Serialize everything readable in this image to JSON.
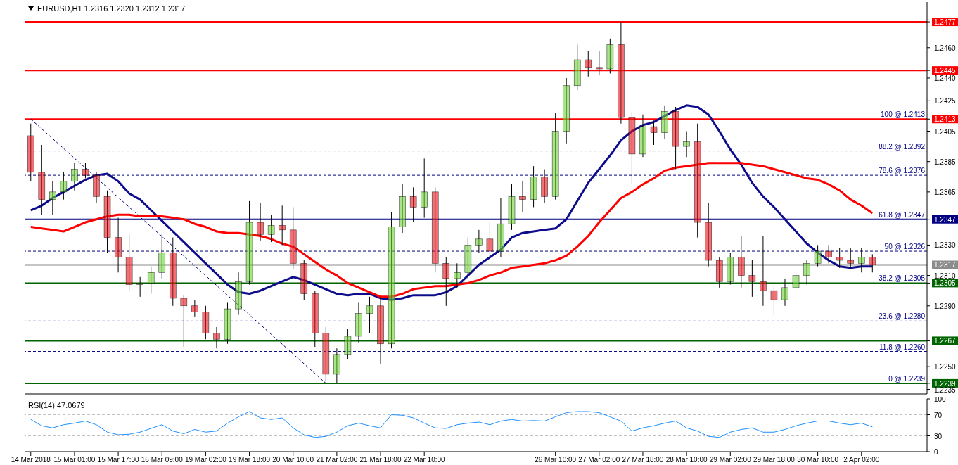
{
  "chart_data": [
    {
      "type": "candlestick",
      "title": "EURUSD,H1  1.2316 1.2320 1.2312 1.2317",
      "categories": [
        null,
        null,
        null,
        null,
        null,
        null,
        null,
        null,
        null,
        null,
        null,
        null,
        null,
        null,
        null,
        null,
        null,
        null,
        null,
        null,
        null,
        null,
        null,
        null,
        null,
        null,
        null,
        null,
        null,
        null,
        null,
        null,
        null,
        null,
        null,
        null,
        null,
        null,
        null,
        null,
        null,
        null,
        null,
        null,
        null,
        null,
        null,
        null,
        null,
        null,
        null,
        null,
        null,
        null,
        null,
        null,
        null,
        null,
        null,
        null,
        null,
        null,
        null,
        null,
        null,
        null,
        null,
        null,
        null,
        null,
        null,
        null,
        null,
        null,
        null,
        null,
        null,
        null
      ],
      "ohlc": [
        [
          1.2402,
          1.241,
          1.2372,
          1.2378
        ],
        [
          1.2378,
          1.2396,
          1.235,
          1.236
        ],
        [
          1.236,
          1.2372,
          1.235,
          1.2365
        ],
        [
          1.2365,
          1.2378,
          1.236,
          1.2372
        ],
        [
          1.2372,
          1.2384,
          1.2366,
          1.238
        ],
        [
          1.238,
          1.2384,
          1.2374,
          1.2376
        ],
        [
          1.2376,
          1.2378,
          1.2358,
          1.2362
        ],
        [
          1.2362,
          1.2366,
          1.2325,
          1.2335
        ],
        [
          1.2335,
          1.2348,
          1.2312,
          1.2322
        ],
        [
          1.2322,
          1.2337,
          1.23,
          1.2304
        ],
        [
          1.2304,
          1.2309,
          1.2296,
          1.2305
        ],
        [
          1.2305,
          1.2316,
          1.2298,
          1.2312
        ],
        [
          1.2312,
          1.2337,
          1.2308,
          1.2325
        ],
        [
          1.2325,
          1.2335,
          1.229,
          1.2295
        ],
        [
          1.2295,
          1.2297,
          1.2263,
          1.229
        ],
        [
          1.229,
          1.2294,
          1.2283,
          1.2286
        ],
        [
          1.2286,
          1.229,
          1.2268,
          1.2272
        ],
        [
          1.2272,
          1.2276,
          1.2262,
          1.2268
        ],
        [
          1.2268,
          1.2292,
          1.2265,
          1.2288
        ],
        [
          1.2288,
          1.2312,
          1.2284,
          1.2306
        ],
        [
          1.2306,
          1.2359,
          1.2304,
          1.2345
        ],
        [
          1.2345,
          1.2358,
          1.2333,
          1.2337
        ],
        [
          1.2337,
          1.235,
          1.2332,
          1.2343
        ],
        [
          1.2343,
          1.2356,
          1.233,
          1.234
        ],
        [
          1.234,
          1.2355,
          1.2314,
          1.2318
        ],
        [
          1.2318,
          1.232,
          1.2294,
          1.2298
        ],
        [
          1.2298,
          1.23,
          1.2263,
          1.2272
        ],
        [
          1.2272,
          1.2276,
          1.224,
          1.2245
        ],
        [
          1.2245,
          1.2262,
          1.2239,
          1.2258
        ],
        [
          1.2258,
          1.2275,
          1.2255,
          1.227
        ],
        [
          1.227,
          1.2292,
          1.2266,
          1.2285
        ],
        [
          1.2285,
          1.2296,
          1.2272,
          1.229
        ],
        [
          1.229,
          1.2296,
          1.2252,
          1.2265
        ],
        [
          1.2265,
          1.2352,
          1.2262,
          1.2342
        ],
        [
          1.2342,
          1.237,
          1.2338,
          1.2362
        ],
        [
          1.2362,
          1.2368,
          1.2345,
          1.2355
        ],
        [
          1.2355,
          1.2387,
          1.2348,
          1.2365
        ],
        [
          1.2365,
          1.2368,
          1.2312,
          1.2318
        ],
        [
          1.2318,
          1.2322,
          1.229,
          1.2308
        ],
        [
          1.2308,
          1.2318,
          1.2302,
          1.2312
        ],
        [
          1.2312,
          1.2335,
          1.2308,
          1.233
        ],
        [
          1.233,
          1.234,
          1.2325,
          1.2334
        ],
        [
          1.2334,
          1.2345,
          1.232,
          1.2326
        ],
        [
          1.2326,
          1.2361,
          1.2322,
          1.2344
        ],
        [
          1.2344,
          1.237,
          1.234,
          1.2362
        ],
        [
          1.2362,
          1.2372,
          1.2352,
          1.236
        ],
        [
          1.236,
          1.2382,
          1.2355,
          1.2375
        ],
        [
          1.2375,
          1.238,
          1.2358,
          1.2362
        ],
        [
          1.2362,
          1.2417,
          1.236,
          1.2405
        ],
        [
          1.2405,
          1.244,
          1.2397,
          1.2435
        ],
        [
          1.2435,
          1.2462,
          1.2432,
          1.2452
        ],
        [
          1.2452,
          1.2458,
          1.2441,
          1.2447
        ],
        [
          1.2447,
          1.2458,
          1.2442,
          1.2446
        ],
        [
          1.2446,
          1.2466,
          1.2443,
          1.2462
        ],
        [
          1.2462,
          1.2477,
          1.241,
          1.2414
        ],
        [
          1.2414,
          1.2418,
          1.237,
          1.239
        ],
        [
          1.239,
          1.2416,
          1.2388,
          1.2408
        ],
        [
          1.2408,
          1.2412,
          1.2396,
          1.2404
        ],
        [
          1.2404,
          1.2422,
          1.24,
          1.2418
        ],
        [
          1.2418,
          1.2421,
          1.238,
          1.2395
        ],
        [
          1.2395,
          1.2405,
          1.2388,
          1.2398
        ],
        [
          1.2398,
          1.241,
          1.2335,
          1.2345
        ],
        [
          1.2345,
          1.2358,
          1.2316,
          1.232
        ],
        [
          1.232,
          1.2322,
          1.2302,
          1.2306
        ],
        [
          1.2306,
          1.2325,
          1.2304,
          1.2322
        ],
        [
          1.2322,
          1.2336,
          1.2302,
          1.231
        ],
        [
          1.231,
          1.232,
          1.2296,
          1.2306
        ],
        [
          1.2306,
          1.2336,
          1.229,
          1.23
        ],
        [
          1.23,
          1.2303,
          1.2284,
          1.2294
        ],
        [
          1.2294,
          1.2308,
          1.229,
          1.2302
        ],
        [
          1.2302,
          1.2312,
          1.2294,
          1.231
        ],
        [
          1.231,
          1.232,
          1.2304,
          1.2318
        ],
        [
          1.2318,
          1.233,
          1.2316,
          1.2326
        ],
        [
          1.2326,
          1.233,
          1.2318,
          1.2322
        ],
        [
          1.2322,
          1.2328,
          1.2315,
          1.232
        ],
        [
          1.232,
          1.2328,
          1.2314,
          1.2318
        ],
        [
          1.2318,
          1.2328,
          1.2312,
          1.2322
        ],
        [
          1.2322,
          1.2324,
          1.2312,
          1.2317
        ]
      ],
      "colors": [
        "#e8141b",
        "#e8141b",
        "#6fd23a",
        "#6fd23a",
        "#6fd23a",
        "#e8141b",
        "#e8141b",
        "#e8141b",
        "#e8141b",
        "#e8141b",
        "#6fd23a",
        "#6fd23a",
        "#6fd23a",
        "#e8141b",
        "#e8141b",
        "#e8141b",
        "#e8141b",
        "#e8141b",
        "#6fd23a",
        "#6fd23a",
        "#6fd23a",
        "#e8141b",
        "#6fd23a",
        "#e8141b",
        "#e8141b",
        "#e8141b",
        "#e8141b",
        "#e8141b",
        "#6fd23a",
        "#6fd23a",
        "#6fd23a",
        "#6fd23a",
        "#e8141b",
        "#6fd23a",
        "#6fd23a",
        "#e8141b",
        "#6fd23a",
        "#e8141b",
        "#e8141b",
        "#6fd23a",
        "#6fd23a",
        "#6fd23a",
        "#e8141b",
        "#6fd23a",
        "#6fd23a",
        "#e8141b",
        "#6fd23a",
        "#e8141b",
        "#6fd23a",
        "#6fd23a",
        "#6fd23a",
        "#e8141b",
        "#e8141b",
        "#6fd23a",
        "#e8141b",
        "#e8141b",
        "#6fd23a",
        "#e8141b",
        "#6fd23a",
        "#e8141b",
        "#6fd23a",
        "#e8141b",
        "#e8141b",
        "#e8141b",
        "#6fd23a",
        "#e8141b",
        "#e8141b",
        "#e8141b",
        "#e8141b",
        "#6fd23a",
        "#6fd23a",
        "#6fd23a",
        "#6fd23a",
        "#e8141b",
        "#e8141b",
        "#e8141b",
        "#6fd23a",
        "#e8141b"
      ],
      "series": [
        {
          "type": "line",
          "color": "#0c0c8c",
          "values": [
            1.2353,
            1.2356,
            1.2361,
            1.2365,
            1.2369,
            1.2373,
            1.2376,
            1.2377,
            1.2372,
            1.2364,
            1.236,
            1.2353,
            1.2346,
            1.2339,
            1.2332,
            1.2325,
            1.2318,
            1.2311,
            1.2304,
            1.2299,
            1.2298,
            1.23,
            1.2303,
            1.2306,
            1.2309,
            1.2307,
            1.2304,
            1.2301,
            1.2298,
            1.2297,
            1.2298,
            1.2298,
            1.2295,
            1.2294,
            1.2295,
            1.2297,
            1.2297,
            1.2297,
            1.2299,
            1.2303,
            1.231,
            1.2317,
            1.2322,
            1.2327,
            1.2335,
            1.2338,
            1.2339,
            1.234,
            1.2341,
            1.2347,
            1.2359,
            1.2371,
            1.238,
            1.2389,
            1.2399,
            1.2405,
            1.2409,
            1.2411,
            1.2415,
            1.2419,
            1.2422,
            1.2421,
            1.2416,
            1.2405,
            1.2393,
            1.2383,
            1.2371,
            1.2362,
            1.2355,
            1.2347,
            1.2339,
            1.2331,
            1.2325,
            1.232,
            1.2316,
            1.2315,
            1.2316,
            1.2316
          ]
        },
        {
          "type": "line",
          "color": "#ff0000",
          "values": [
            1.2342,
            1.2341,
            1.234,
            1.2339,
            1.2342,
            1.2345,
            1.2347,
            1.2349,
            1.235,
            1.235,
            1.2349,
            1.2349,
            1.2349,
            1.2348,
            1.2347,
            1.2344,
            1.2342,
            1.2339,
            1.2338,
            1.2338,
            1.2337,
            1.2336,
            1.2334,
            1.2331,
            1.2329,
            1.2324,
            1.2319,
            1.2314,
            1.231,
            1.2305,
            1.2302,
            1.2299,
            1.2296,
            1.2296,
            1.2298,
            1.2301,
            1.2302,
            1.2303,
            1.2303,
            1.2304,
            1.2305,
            1.2307,
            1.231,
            1.2312,
            1.2315,
            1.2316,
            1.2317,
            1.2318,
            1.232,
            1.2323,
            1.2329,
            1.2336,
            1.2345,
            1.2353,
            1.2361,
            1.2365,
            1.237,
            1.2374,
            1.2379,
            1.2381,
            1.2382,
            1.2383,
            1.2384,
            1.2384,
            1.2384,
            1.2384,
            1.2383,
            1.2382,
            1.238,
            1.2378,
            1.2376,
            1.2374,
            1.2373,
            1.237,
            1.2366,
            1.236,
            1.2356,
            1.2351
          ]
        },
        {
          "type": "line",
          "color": "#000080",
          "line_style": "dashed",
          "values": [
            1.2413,
            null,
            null,
            null,
            null,
            null,
            null,
            null,
            null,
            null,
            null,
            null,
            null,
            null,
            null,
            null,
            null,
            null,
            null,
            null,
            null,
            null,
            null,
            null,
            null,
            null,
            null,
            1.2239,
            null,
            null,
            null,
            null,
            null,
            null,
            null,
            null,
            null,
            null,
            null,
            null,
            null,
            null,
            null,
            null,
            null,
            null,
            null,
            null,
            null,
            null,
            null,
            null,
            null,
            null,
            null,
            null,
            null,
            null,
            null,
            null,
            null,
            null,
            null,
            null,
            null,
            null,
            null,
            null,
            null,
            null,
            null,
            null,
            null,
            null,
            null,
            null,
            null,
            null
          ]
        }
      ],
      "ylim": [
        1.2232,
        1.249
      ],
      "yticks": [
        1.2477,
        {
          "value": 1.246,
          "label": "1.2460"
        },
        1.2445,
        {
          "value": 1.244,
          "label": "1.2440"
        },
        1.2425,
        1.2413,
        1.2405,
        1.2385,
        1.2365,
        1.2347,
        {
          "value": 1.233,
          "label": "1.2330"
        },
        1.2317,
        {
          "value": 1.231,
          "label": "1.2310"
        },
        1.2305,
        {
          "value": 1.229,
          "label": "1.2290"
        },
        1.2267,
        {
          "value": 1.225,
          "label": "1.2250"
        },
        1.2239,
        1.2235
      ],
      "ref_lines": [
        {
          "axis": "y",
          "value": 1.2477,
          "color": "#ff0000",
          "line_style": "solid"
        },
        {
          "axis": "y",
          "value": 1.2445,
          "color": "#ff0000",
          "line_style": "solid"
        },
        {
          "axis": "y",
          "value": 1.2413,
          "color": "#ff0000",
          "line_style": "solid",
          "label": "100 @ 1.2413"
        },
        {
          "axis": "y",
          "value": 1.2392,
          "color": "#000080",
          "line_style": "dashed",
          "label": "88.2 @ 1.2392"
        },
        {
          "axis": "y",
          "value": 1.2376,
          "color": "#000080",
          "line_style": "dashed",
          "label": "78.6 @ 1.2376"
        },
        {
          "axis": "y",
          "value": 1.2347,
          "color": "#000080",
          "line_style": "solid",
          "label": "61.8 @ 1.2347"
        },
        {
          "axis": "y",
          "value": 1.2326,
          "color": "#000080",
          "line_style": "dashed",
          "label": "50 @ 1.2326"
        },
        {
          "axis": "y",
          "value": 1.2317,
          "color": "#8c8c8c",
          "line_style": "solid"
        },
        {
          "axis": "y",
          "value": 1.2305,
          "color": "#006400",
          "line_style": "solid",
          "label": "38.2 @ 1.2305"
        },
        {
          "axis": "y",
          "value": 1.228,
          "color": "#000080",
          "line_style": "dashed",
          "label": "23.6 @ 1.2280"
        },
        {
          "axis": "y",
          "value": 1.2267,
          "color": "#006400",
          "line_style": "solid"
        },
        {
          "axis": "y",
          "value": 1.226,
          "color": "#000080",
          "line_style": "dashed",
          "label": "11.8 @ 1.2260"
        },
        {
          "axis": "y",
          "value": 1.2239,
          "color": "#006400",
          "line_style": "solid",
          "label": "0 @ 1.2239"
        }
      ],
      "marker": "none",
      "grid": false,
      "legend": false,
      "tick_labels": "y"
    },
    {
      "type": "line",
      "title": "RSI(14) 47.0679",
      "categories": [
        "14 Mar 2018",
        null,
        null,
        null,
        "15 Mar 01:00",
        null,
        null,
        null,
        "15 Mar 17:00",
        null,
        null,
        null,
        "16 Mar 09:00",
        null,
        null,
        null,
        "19 Mar 02:00",
        null,
        null,
        null,
        "19 Mar 18:00",
        null,
        null,
        null,
        "20 Mar 10:00",
        null,
        null,
        null,
        "21 Mar 02:00",
        null,
        null,
        null,
        "21 Mar 18:00",
        null,
        null,
        null,
        "22 Mar 10:00",
        null,
        null,
        null,
        null,
        null,
        null,
        null,
        null,
        null,
        null,
        null,
        "26 Mar 10:00",
        null,
        null,
        null,
        "27 Mar 02:00",
        null,
        null,
        null,
        "27 Mar 18:00",
        null,
        null,
        null,
        "28 Mar 10:00",
        null,
        null,
        null,
        "29 Mar 02:00",
        null,
        null,
        null,
        "29 Mar 18:00",
        null,
        null,
        null,
        "30 Mar 10:00",
        null,
        null,
        null,
        "2 Apr 02:00",
        null
      ],
      "series": [
        {
          "color": "#1e90ff",
          "values": [
            61,
            49,
            45,
            51,
            54,
            58,
            51,
            37,
            32,
            33,
            37,
            44,
            51,
            39,
            34,
            42,
            37,
            39,
            54,
            66,
            76,
            64,
            61,
            64,
            45,
            32,
            27,
            29,
            37,
            49,
            54,
            49,
            45,
            70,
            69,
            64,
            54,
            45,
            44,
            51,
            54,
            56,
            51,
            58,
            61,
            58,
            59,
            58,
            66,
            74,
            76,
            76,
            74,
            66,
            58,
            39,
            45,
            49,
            54,
            58,
            45,
            39,
            29,
            27,
            37,
            42,
            45,
            37,
            37,
            42,
            49,
            54,
            58,
            58,
            54,
            51,
            54,
            47
          ]
        }
      ],
      "ylim": [
        0,
        100
      ],
      "yticks": [
        0,
        30,
        70,
        100
      ],
      "ref_lines": [
        {
          "axis": "y",
          "value": 70,
          "color": "#c0c0c0",
          "line_style": "dashed"
        },
        {
          "axis": "y",
          "value": 30,
          "color": "#c0c0c0",
          "line_style": "dashed"
        }
      ],
      "marker": "none",
      "grid": false,
      "legend": false
    }
  ]
}
